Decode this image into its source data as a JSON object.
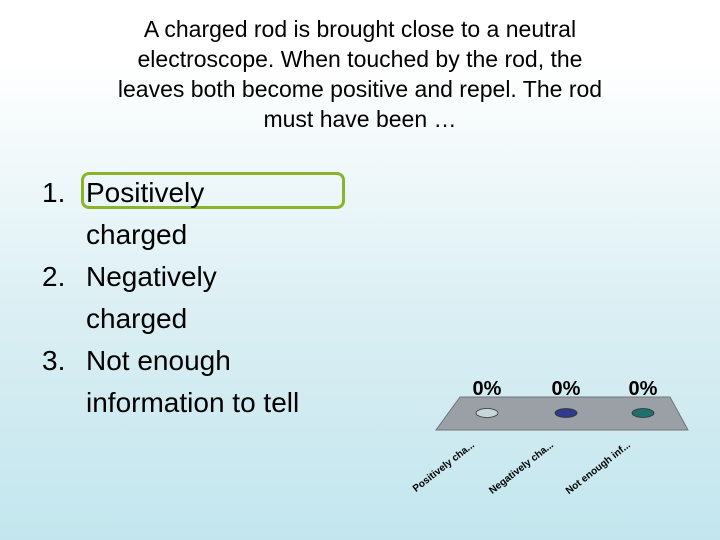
{
  "question": {
    "line1": "A charged rod is brought close to a neutral",
    "line2": "electroscope. When touched by the rod, the",
    "line3": "leaves both become positive and repel. The rod",
    "line4": "must have been …"
  },
  "options": [
    {
      "number": "1.",
      "line1": "Positively",
      "line2": "charged"
    },
    {
      "number": "2.",
      "line1": "Negatively",
      "line2": "charged"
    },
    {
      "number": "3.",
      "line1": "Not enough",
      "line2": "information to tell"
    }
  ],
  "colors": {
    "highlight": "#8ab42a",
    "platform": "#9aa0a6",
    "series": [
      "#c9d6da",
      "#2e3a8c",
      "#1f6f6e"
    ]
  },
  "chart_data": {
    "type": "bar",
    "categories": [
      "Positively cha...",
      "Negatively cha...",
      "Not enough inf..."
    ],
    "values": [
      0,
      0,
      0
    ],
    "value_labels": [
      "0%",
      "0%",
      "0%"
    ],
    "ylim": [
      0,
      100
    ]
  }
}
